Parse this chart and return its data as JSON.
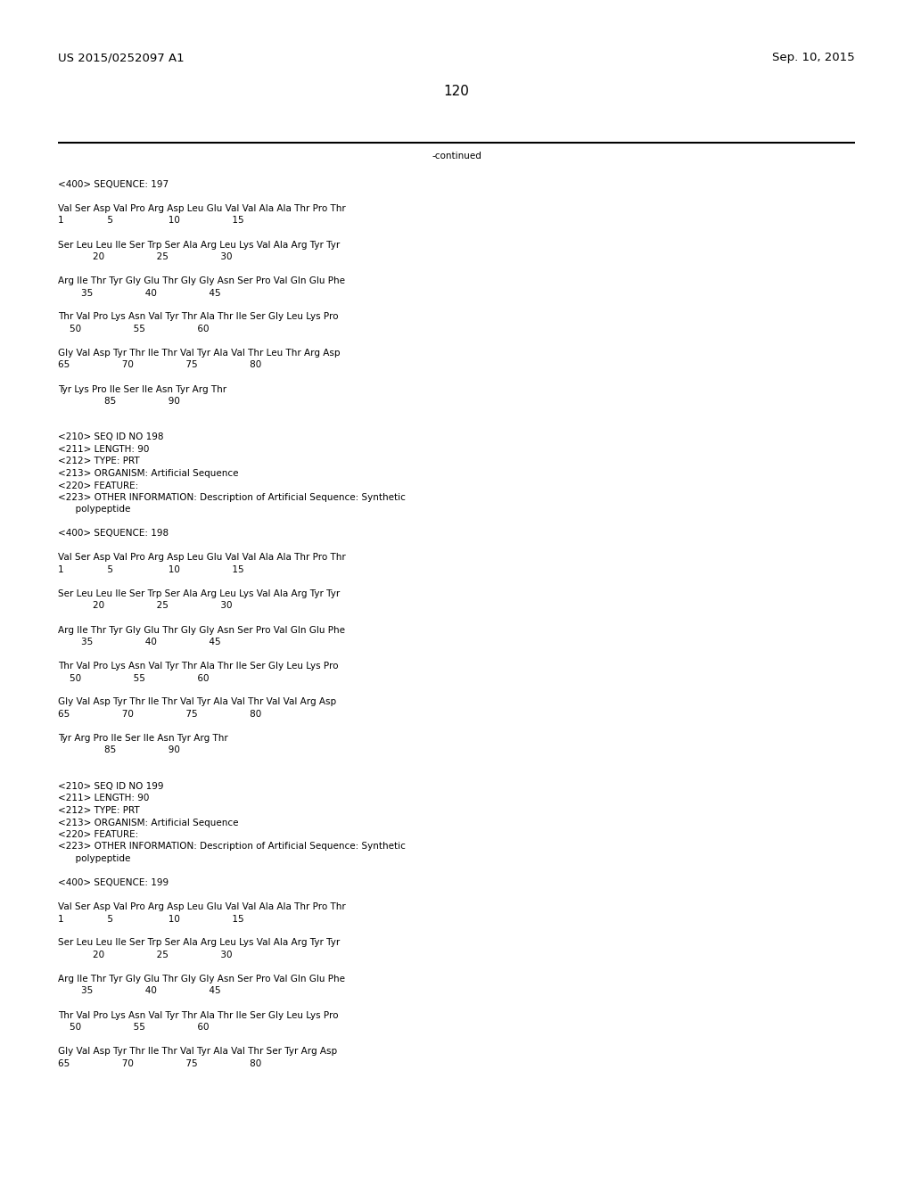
{
  "bg_color": "#ffffff",
  "top_left_text": "US 2015/0252097 A1",
  "top_right_text": "Sep. 10, 2015",
  "page_number": "120",
  "continued_text": "-continued",
  "font_family": "Courier New",
  "header_font_size": 9.5,
  "page_num_font_size": 11,
  "body_font_size": 7.5,
  "content": [
    "<400> SEQUENCE: 197",
    "",
    "Val Ser Asp Val Pro Arg Asp Leu Glu Val Val Ala Ala Thr Pro Thr",
    "1               5                   10                  15",
    "",
    "Ser Leu Leu Ile Ser Trp Ser Ala Arg Leu Lys Val Ala Arg Tyr Tyr",
    "            20                  25                  30",
    "",
    "Arg Ile Thr Tyr Gly Glu Thr Gly Gly Asn Ser Pro Val Gln Glu Phe",
    "        35                  40                  45",
    "",
    "Thr Val Pro Lys Asn Val Tyr Thr Ala Thr Ile Ser Gly Leu Lys Pro",
    "    50                  55                  60",
    "",
    "Gly Val Asp Tyr Thr Ile Thr Val Tyr Ala Val Thr Leu Thr Arg Asp",
    "65                  70                  75                  80",
    "",
    "Tyr Lys Pro Ile Ser Ile Asn Tyr Arg Thr",
    "                85                  90",
    "",
    "",
    "<210> SEQ ID NO 198",
    "<211> LENGTH: 90",
    "<212> TYPE: PRT",
    "<213> ORGANISM: Artificial Sequence",
    "<220> FEATURE:",
    "<223> OTHER INFORMATION: Description of Artificial Sequence: Synthetic",
    "      polypeptide",
    "",
    "<400> SEQUENCE: 198",
    "",
    "Val Ser Asp Val Pro Arg Asp Leu Glu Val Val Ala Ala Thr Pro Thr",
    "1               5                   10                  15",
    "",
    "Ser Leu Leu Ile Ser Trp Ser Ala Arg Leu Lys Val Ala Arg Tyr Tyr",
    "            20                  25                  30",
    "",
    "Arg Ile Thr Tyr Gly Glu Thr Gly Gly Asn Ser Pro Val Gln Glu Phe",
    "        35                  40                  45",
    "",
    "Thr Val Pro Lys Asn Val Tyr Thr Ala Thr Ile Ser Gly Leu Lys Pro",
    "    50                  55                  60",
    "",
    "Gly Val Asp Tyr Thr Ile Thr Val Tyr Ala Val Thr Val Val Arg Asp",
    "65                  70                  75                  80",
    "",
    "Tyr Arg Pro Ile Ser Ile Asn Tyr Arg Thr",
    "                85                  90",
    "",
    "",
    "<210> SEQ ID NO 199",
    "<211> LENGTH: 90",
    "<212> TYPE: PRT",
    "<213> ORGANISM: Artificial Sequence",
    "<220> FEATURE:",
    "<223> OTHER INFORMATION: Description of Artificial Sequence: Synthetic",
    "      polypeptide",
    "",
    "<400> SEQUENCE: 199",
    "",
    "Val Ser Asp Val Pro Arg Asp Leu Glu Val Val Ala Ala Thr Pro Thr",
    "1               5                   10                  15",
    "",
    "Ser Leu Leu Ile Ser Trp Ser Ala Arg Leu Lys Val Ala Arg Tyr Tyr",
    "            20                  25                  30",
    "",
    "Arg Ile Thr Tyr Gly Glu Thr Gly Gly Asn Ser Pro Val Gln Glu Phe",
    "        35                  40                  45",
    "",
    "Thr Val Pro Lys Asn Val Tyr Thr Ala Thr Ile Ser Gly Leu Lys Pro",
    "    50                  55                  60",
    "",
    "Gly Val Asp Tyr Thr Ile Thr Val Tyr Ala Val Thr Ser Tyr Arg Asp",
    "65                  70                  75                  80"
  ]
}
